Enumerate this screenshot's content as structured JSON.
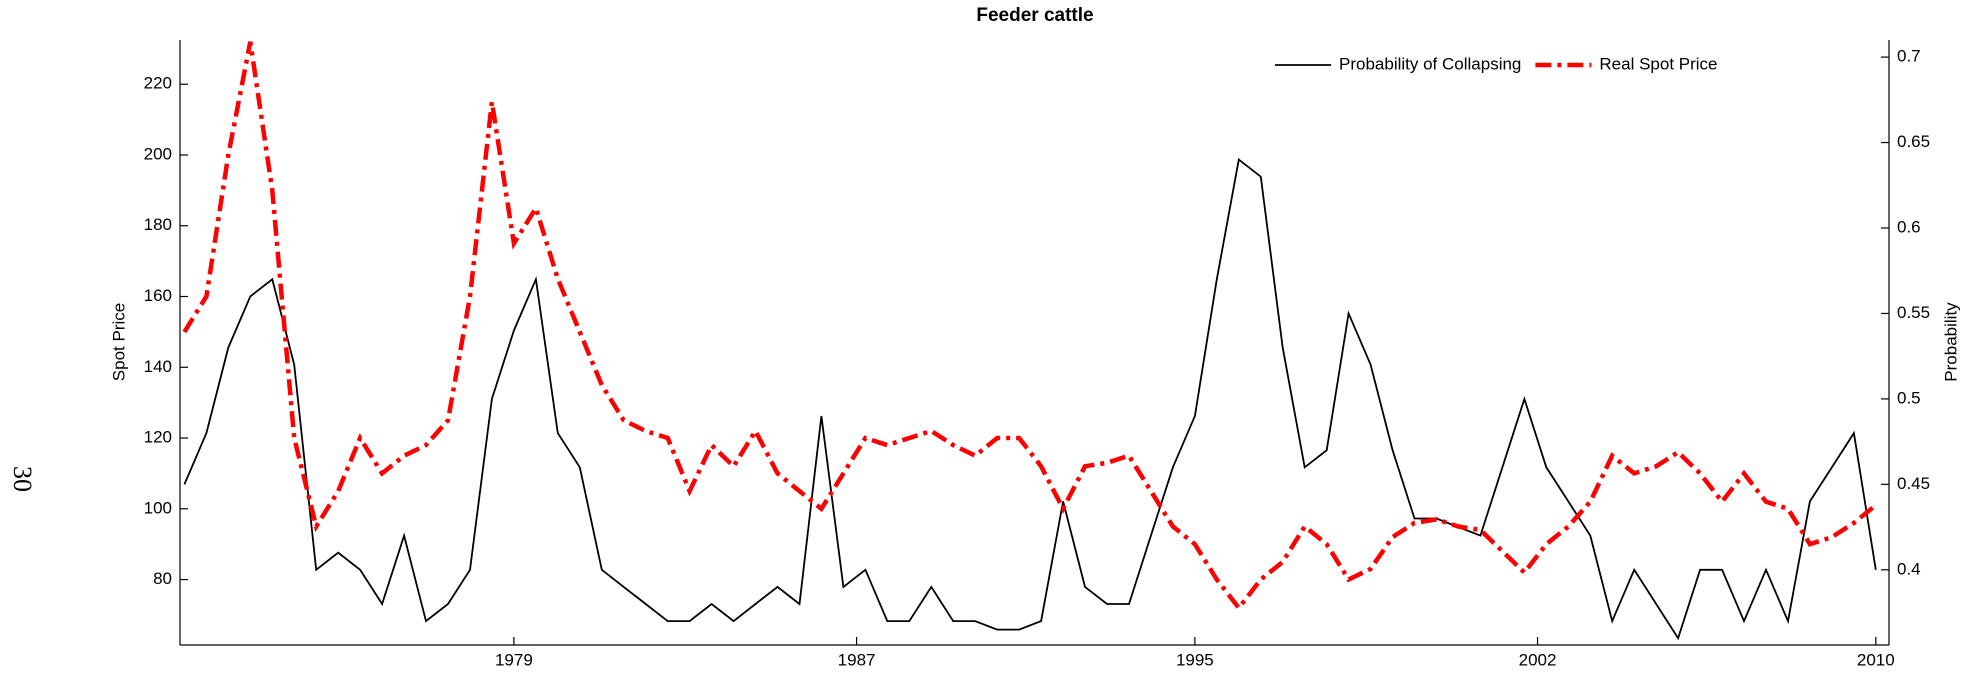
{
  "page_number": "30",
  "chart_data": {
    "type": "line",
    "title": "Feeder cattle",
    "ylabel": "Spot Price",
    "y2label": "Probability",
    "x": [
      1971.5,
      1972.0,
      1972.5,
      1973.0,
      1973.5,
      1974.0,
      1974.5,
      1975.0,
      1975.5,
      1976.0,
      1976.5,
      1977.0,
      1977.5,
      1978.0,
      1978.5,
      1979.0,
      1979.5,
      1980.0,
      1980.5,
      1981.0,
      1981.5,
      1982.0,
      1982.5,
      1983.0,
      1983.5,
      1984.0,
      1984.5,
      1985.0,
      1985.5,
      1986.0,
      1986.5,
      1987.0,
      1987.5,
      1988.0,
      1988.5,
      1989.0,
      1989.5,
      1990.0,
      1990.5,
      1991.0,
      1991.5,
      1992.0,
      1992.5,
      1993.0,
      1993.5,
      1994.0,
      1994.5,
      1995.0,
      1995.5,
      1996.0,
      1996.5,
      1997.0,
      1997.5,
      1998.0,
      1998.5,
      1999.0,
      1999.5,
      2000.0,
      2000.5,
      2001.0,
      2001.5,
      2002.0,
      2002.5,
      2003.0,
      2003.5,
      2004.0,
      2004.5,
      2005.0,
      2005.5,
      2006.0,
      2006.5,
      2007.0,
      2007.5,
      2008.0,
      2008.5,
      2009.0,
      2009.5,
      2010.0
    ],
    "series": [
      {
        "name": "Probability of Collapsing",
        "color": "#000000",
        "axis": "y2",
        "style": "solid",
        "values": [
          0.45,
          0.48,
          0.53,
          0.56,
          0.57,
          0.52,
          0.4,
          0.41,
          0.4,
          0.38,
          0.42,
          0.37,
          0.38,
          0.4,
          0.5,
          0.54,
          0.57,
          0.48,
          0.46,
          0.4,
          0.39,
          0.38,
          0.37,
          0.37,
          0.38,
          0.37,
          0.38,
          0.39,
          0.38,
          0.49,
          0.39,
          0.4,
          0.37,
          0.37,
          0.39,
          0.37,
          0.37,
          0.365,
          0.365,
          0.37,
          0.44,
          0.39,
          0.38,
          0.38,
          0.42,
          0.46,
          0.49,
          0.57,
          0.64,
          0.63,
          0.53,
          0.46,
          0.47,
          0.55,
          0.52,
          0.47,
          0.43,
          0.43,
          0.425,
          0.42,
          0.46,
          0.5,
          0.46,
          0.44,
          0.42,
          0.37,
          0.4,
          0.38,
          0.36,
          0.4,
          0.4,
          0.37,
          0.4,
          0.37,
          0.44,
          0.46,
          0.48,
          0.4
        ]
      },
      {
        "name": "Real Spot Price",
        "color": "#ff0000",
        "axis": "y",
        "style": "dashdot",
        "values": [
          150,
          160,
          200,
          232,
          190,
          120,
          95,
          105,
          120,
          110,
          115,
          118,
          125,
          160,
          215,
          175,
          185,
          165,
          150,
          135,
          125,
          122,
          120,
          105,
          118,
          112,
          122,
          110,
          105,
          100,
          110,
          120,
          118,
          120,
          122,
          118,
          115,
          120,
          120,
          112,
          100,
          112,
          113,
          115,
          105,
          95,
          90,
          80,
          72,
          80,
          85,
          95,
          90,
          80,
          83,
          92,
          96,
          97,
          95,
          94,
          88,
          82,
          90,
          95,
          102,
          115,
          110,
          112,
          116,
          110,
          102,
          110,
          102,
          100,
          90,
          92,
          96,
          101
        ]
      }
    ],
    "xlim": [
      1971.4,
      2010.3
    ],
    "xticks": [
      {
        "value": 1979.0,
        "label": "1979"
      },
      {
        "value": 1986.8,
        "label": "1987"
      },
      {
        "value": 1994.5,
        "label": "1995"
      },
      {
        "value": 2002.3,
        "label": "2002"
      },
      {
        "value": 2010.0,
        "label": "2010"
      }
    ],
    "ylim": [
      61.5,
      232.5
    ],
    "yticks": [
      80,
      100,
      120,
      140,
      160,
      180,
      200,
      220
    ],
    "y2lim": [
      0.356,
      0.71
    ],
    "y2ticks": [
      0.4,
      0.45,
      0.5,
      0.55,
      0.6,
      0.65,
      0.7
    ],
    "legend": "upper right",
    "grid": false
  }
}
